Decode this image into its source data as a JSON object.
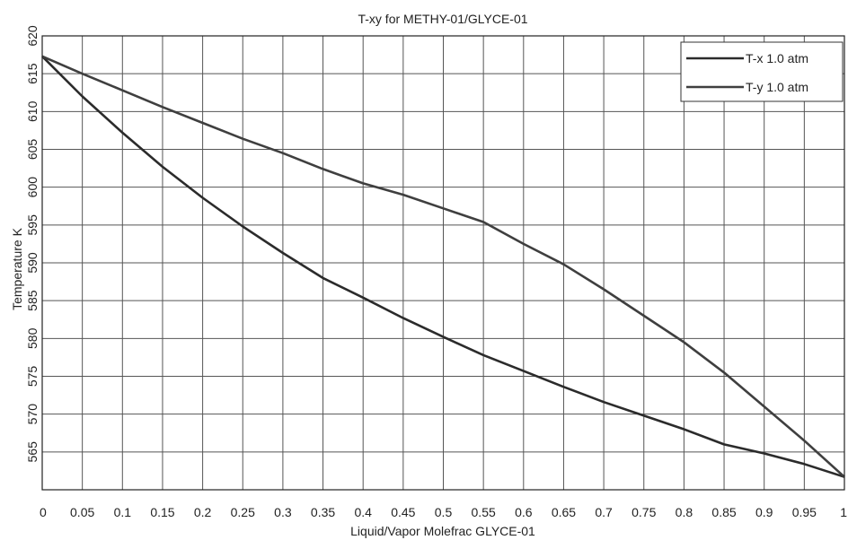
{
  "chart_data": {
    "type": "line",
    "title": "T-xy for METHY-01/GLYCE-01",
    "xlabel": "Liquid/Vapor Molefrac GLYCE-01",
    "ylabel": "Temperature  K",
    "xlim": [
      0,
      1
    ],
    "ylim": [
      560,
      620
    ],
    "grid": true,
    "legend_position": "top-right",
    "x_ticks": [
      "0",
      "0.05",
      "0.1",
      "0.15",
      "0.2",
      "0.25",
      "0.3",
      "0.35",
      "0.4",
      "0.45",
      "0.5",
      "0.55",
      "0.6",
      "0.65",
      "0.7",
      "0.75",
      "0.8",
      "0.85",
      "0.9",
      "0.95",
      "1"
    ],
    "y_ticks": [
      "565",
      "570",
      "575",
      "580",
      "585",
      "590",
      "595",
      "600",
      "605",
      "610",
      "615",
      "620"
    ],
    "x": [
      0,
      0.05,
      0.1,
      0.15,
      0.2,
      0.25,
      0.3,
      0.35,
      0.4,
      0.45,
      0.5,
      0.55,
      0.6,
      0.65,
      0.7,
      0.75,
      0.8,
      0.85,
      0.9,
      0.95,
      1.0
    ],
    "series": [
      {
        "name": "T-x   1.0 atm",
        "color": "#2b2b2b",
        "values": [
          617.3,
          612.0,
          607.2,
          602.7,
          598.6,
          594.8,
          591.3,
          588.0,
          585.4,
          582.7,
          580.2,
          577.8,
          575.7,
          573.6,
          571.6,
          569.8,
          568.0,
          566.0,
          564.8,
          563.4,
          561.7
        ]
      },
      {
        "name": "T-y   1.0 atm",
        "color": "#3f3f3f",
        "values": [
          617.3,
          615.0,
          612.8,
          610.6,
          608.5,
          606.4,
          604.5,
          602.4,
          600.5,
          599.0,
          597.2,
          595.4,
          592.5,
          589.8,
          586.5,
          583.0,
          579.5,
          575.5,
          571.0,
          566.5,
          561.7
        ]
      }
    ]
  }
}
